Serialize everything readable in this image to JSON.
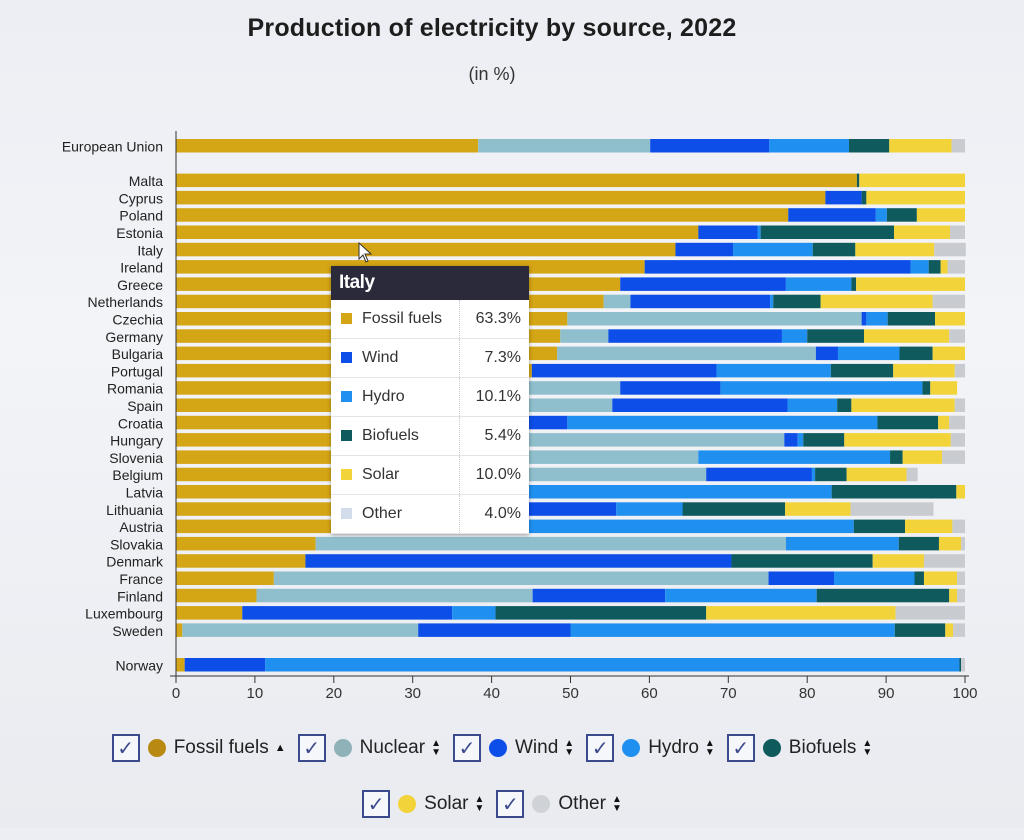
{
  "page": {
    "title": "Production of electricity by source, 2022",
    "subtitle": "(in %)"
  },
  "chart_data": {
    "type": "bar",
    "orientation": "horizontal",
    "stacked": true,
    "title": "Production of electricity by source, 2022",
    "subtitle": "(in %)",
    "xlabel": "",
    "ylabel": "",
    "xlim": [
      0,
      100
    ],
    "xticks": [
      0,
      10,
      20,
      30,
      40,
      50,
      60,
      70,
      80,
      90,
      100
    ],
    "grid": false,
    "legend_position": "bottom",
    "series_names": [
      "Fossil fuels",
      "Nuclear",
      "Wind",
      "Hydro",
      "Biofuels",
      "Solar",
      "Other"
    ],
    "colors": {
      "Fossil fuels": "#d4a514",
      "Nuclear": "#8fbfcc",
      "Wind": "#0d4ee8",
      "Hydro": "#1f8ff0",
      "Biofuels": "#0f5a5c",
      "Solar": "#f2d33a",
      "Other": "#c8cbd0"
    },
    "categories": [
      "European Union",
      "Malta",
      "Cyprus",
      "Poland",
      "Estonia",
      "Italy",
      "Ireland",
      "Greece",
      "Netherlands",
      "Czechia",
      "Germany",
      "Bulgaria",
      "Portugal",
      "Romania",
      "Spain",
      "Croatia",
      "Hungary",
      "Slovenia",
      "Belgium",
      "Latvia",
      "Lithuania",
      "Austria",
      "Slovakia",
      "Denmark",
      "France",
      "Finland",
      "Luxembourg",
      "Sweden",
      "Norway"
    ],
    "group_gap_after": [
      "European Union",
      "Sweden"
    ],
    "rows": [
      {
        "country": "European Union",
        "values": [
          38.3,
          21.8,
          15.1,
          10.1,
          5.1,
          7.9,
          1.7
        ]
      },
      {
        "country": "Malta",
        "values": [
          86.3,
          0,
          0,
          0,
          0.3,
          13.4,
          0
        ]
      },
      {
        "country": "Cyprus",
        "values": [
          82.3,
          0,
          4.6,
          0,
          0.6,
          12.5,
          0
        ]
      },
      {
        "country": "Poland",
        "values": [
          77.6,
          0,
          11.1,
          1.4,
          3.8,
          6.1,
          0
        ]
      },
      {
        "country": "Estonia",
        "values": [
          66.2,
          0,
          7.5,
          0.4,
          16.9,
          7.1,
          1.9
        ]
      },
      {
        "country": "Italy",
        "values": [
          63.3,
          0,
          7.3,
          10.1,
          5.4,
          10.0,
          4.0
        ]
      },
      {
        "country": "Ireland",
        "values": [
          59.4,
          0,
          33.7,
          2.3,
          1.5,
          0.9,
          2.2
        ]
      },
      {
        "country": "Greece",
        "values": [
          56.3,
          0,
          21.0,
          8.3,
          0.6,
          13.8,
          0
        ]
      },
      {
        "country": "Netherlands",
        "values": [
          54.2,
          3.4,
          17.7,
          0.4,
          6.0,
          14.2,
          4.1
        ]
      },
      {
        "country": "Czechia",
        "values": [
          49.6,
          37.3,
          0.6,
          2.7,
          6.0,
          3.8,
          0
        ]
      },
      {
        "country": "Germany",
        "values": [
          48.7,
          6.1,
          22.0,
          3.2,
          7.2,
          10.8,
          2.0
        ]
      },
      {
        "country": "Bulgaria",
        "values": [
          48.3,
          32.8,
          2.8,
          7.8,
          4.2,
          4.1,
          0
        ]
      },
      {
        "country": "Portugal",
        "values": [
          45.1,
          0,
          23.4,
          14.5,
          7.9,
          7.8,
          1.3
        ]
      },
      {
        "country": "Romania",
        "values": [
          44.0,
          12.3,
          12.7,
          25.6,
          1.0,
          3.4,
          0
        ]
      },
      {
        "country": "Spain",
        "values": [
          43.7,
          11.6,
          22.2,
          6.3,
          1.8,
          13.1,
          1.3
        ]
      },
      {
        "country": "Croatia",
        "values": [
          43.2,
          0,
          6.4,
          39.3,
          7.7,
          1.4,
          2.0
        ]
      },
      {
        "country": "Hungary",
        "values": [
          44.0,
          33.1,
          1.7,
          0.7,
          5.2,
          13.5,
          1.8
        ]
      },
      {
        "country": "Slovenia",
        "values": [
          42.0,
          24.2,
          0,
          24.3,
          1.6,
          5.0,
          2.9
        ]
      },
      {
        "country": "Belgium",
        "values": [
          40.0,
          27.2,
          13.4,
          0.4,
          4.0,
          7.6,
          1.4
        ]
      },
      {
        "country": "Latvia",
        "values": [
          41.3,
          0,
          0,
          41.8,
          15.8,
          1.1,
          0
        ]
      },
      {
        "country": "Lithuania",
        "values": [
          40.5,
          0,
          15.3,
          8.4,
          13.0,
          8.3,
          10.5
        ]
      },
      {
        "country": "Austria",
        "values": [
          20.9,
          0,
          11.2,
          53.8,
          6.5,
          6.0,
          1.6
        ]
      },
      {
        "country": "Slovakia",
        "values": [
          17.7,
          59.6,
          0,
          14.3,
          5.1,
          2.8,
          0.5
        ]
      },
      {
        "country": "Denmark",
        "values": [
          16.4,
          0,
          54.0,
          0,
          17.9,
          6.5,
          5.2
        ]
      },
      {
        "country": "France",
        "values": [
          12.4,
          62.7,
          8.3,
          10.2,
          1.2,
          4.2,
          1.0
        ]
      },
      {
        "country": "Finland",
        "values": [
          10.2,
          35.0,
          16.8,
          19.2,
          16.8,
          1.0,
          1.0
        ]
      },
      {
        "country": "Luxembourg",
        "values": [
          8.4,
          0,
          26.6,
          5.5,
          26.7,
          24.0,
          8.8
        ]
      },
      {
        "country": "Sweden",
        "values": [
          0.8,
          29.9,
          19.3,
          41.1,
          6.4,
          1.0,
          1.5
        ]
      },
      {
        "country": "Norway",
        "values": [
          1.1,
          0,
          10.2,
          88.0,
          0.2,
          0,
          0.5
        ]
      }
    ]
  },
  "tooltip": {
    "title": "Italy",
    "rows": [
      {
        "label": "Fossil fuels",
        "value": "63.3%",
        "color": "#d4a514"
      },
      {
        "label": "Wind",
        "value": "7.3%",
        "color": "#0d4ee8"
      },
      {
        "label": "Hydro",
        "value": "10.1%",
        "color": "#1f8ff0"
      },
      {
        "label": "Biofuels",
        "value": "5.4%",
        "color": "#0f5a5c"
      },
      {
        "label": "Solar",
        "value": "10.0%",
        "color": "#f2d33a"
      },
      {
        "label": "Other",
        "value": "4.0%",
        "color": "#d3dcea"
      }
    ]
  },
  "legend": {
    "items": [
      {
        "label": "Fossil fuels",
        "checked": true,
        "color": "#b98a12",
        "sort": "ascending"
      },
      {
        "label": "Nuclear",
        "checked": true,
        "color": "#8fb2b8",
        "sort": "none"
      },
      {
        "label": "Wind",
        "checked": true,
        "color": "#0d4ee8",
        "sort": "none"
      },
      {
        "label": "Hydro",
        "checked": true,
        "color": "#1f8ff0",
        "sort": "none"
      },
      {
        "label": "Biofuels",
        "checked": true,
        "color": "#0f5a5c",
        "sort": "none"
      },
      {
        "label": "Solar",
        "checked": true,
        "color": "#f2d33a",
        "sort": "none"
      },
      {
        "label": "Other",
        "checked": true,
        "color": "#cfd2d6",
        "sort": "none"
      }
    ],
    "check_glyph": "✓",
    "sort_asc_glyph": "▲",
    "sort_both_up": "▲",
    "sort_both_down": "▼"
  }
}
